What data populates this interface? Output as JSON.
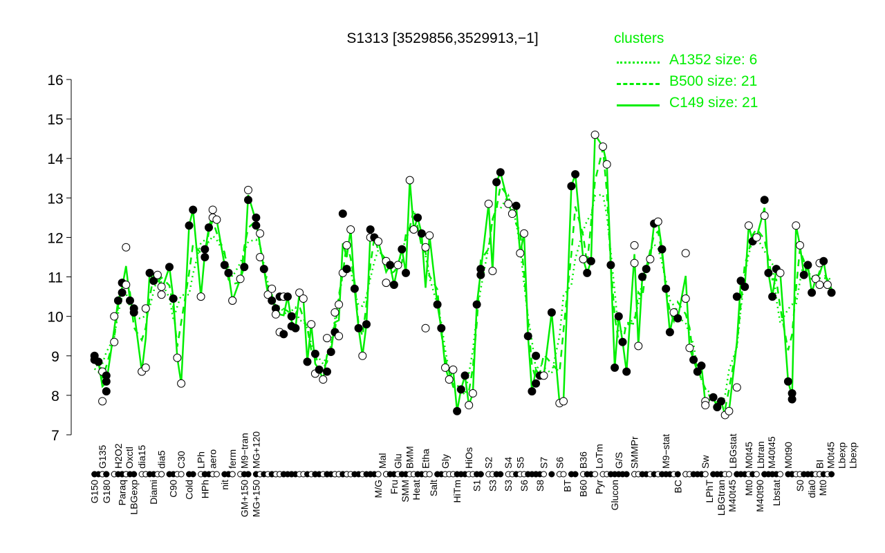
{
  "chart_data": {
    "type": "line",
    "title": "S1313 [3529856,3529913,−1]",
    "xlabel": "",
    "ylabel": "",
    "ylim": [
      7,
      16
    ],
    "xlim": [
      1,
      190
    ],
    "yticks": [
      "7",
      "8",
      "9",
      "10",
      "11",
      "12",
      "13",
      "14",
      "15",
      "16"
    ],
    "grid": false,
    "legend": {
      "title": "clusters",
      "placement": "top-right",
      "color": "#00ee00",
      "entries": [
        {
          "label": "A1352 size: 6",
          "style": "dotted"
        },
        {
          "label": "B500 size: 21",
          "style": "dashed"
        },
        {
          "label": "C149 size: 21",
          "style": "solid"
        }
      ]
    },
    "line_color": "#00ee00",
    "points": [
      [
        2,
        9.0,
        1
      ],
      [
        2,
        8.9,
        1
      ],
      [
        3,
        8.85,
        1
      ],
      [
        4,
        8.6,
        0
      ],
      [
        4,
        7.85,
        0
      ],
      [
        5,
        8.1,
        1
      ],
      [
        5,
        8.5,
        1
      ],
      [
        5,
        8.35,
        1
      ],
      [
        7,
        9.35,
        0
      ],
      [
        7,
        10.0,
        0
      ],
      [
        8,
        10.4,
        1
      ],
      [
        9,
        10.85,
        1
      ],
      [
        9,
        10.6,
        1
      ],
      [
        10,
        10.8,
        0
      ],
      [
        10,
        11.75,
        0
      ],
      [
        11,
        10.4,
        1
      ],
      [
        12,
        10.2,
        1
      ],
      [
        12,
        10.1,
        1
      ],
      [
        14,
        8.6,
        0
      ],
      [
        15,
        10.2,
        0
      ],
      [
        15,
        8.7,
        0
      ],
      [
        16,
        11.1,
        1
      ],
      [
        17,
        10.9,
        1
      ],
      [
        18,
        11.05,
        0
      ],
      [
        19,
        10.55,
        0
      ],
      [
        19,
        10.75,
        0
      ],
      [
        21,
        11.25,
        1
      ],
      [
        22,
        10.45,
        1
      ],
      [
        23,
        8.95,
        0
      ],
      [
        24,
        8.3,
        0
      ],
      [
        26,
        12.3,
        1
      ],
      [
        27,
        12.7,
        1
      ],
      [
        29,
        10.5,
        0
      ],
      [
        30,
        11.5,
        1
      ],
      [
        30,
        11.7,
        1
      ],
      [
        31,
        12.25,
        1
      ],
      [
        32,
        12.5,
        0
      ],
      [
        32,
        12.7,
        0
      ],
      [
        33,
        12.45,
        0
      ],
      [
        35,
        11.3,
        1
      ],
      [
        36,
        11.1,
        1
      ],
      [
        36,
        11.1,
        1
      ],
      [
        37,
        10.4,
        0
      ],
      [
        37,
        10.4,
        0
      ],
      [
        39,
        10.95,
        0
      ],
      [
        40,
        11.25,
        1
      ],
      [
        41,
        13.2,
        0
      ],
      [
        41,
        12.95,
        1
      ],
      [
        43,
        12.5,
        1
      ],
      [
        43,
        12.3,
        1
      ],
      [
        44,
        12.1,
        0
      ],
      [
        44,
        11.5,
        0
      ],
      [
        45,
        11.2,
        1
      ],
      [
        46,
        10.55,
        0
      ],
      [
        47,
        10.7,
        0
      ],
      [
        47,
        10.4,
        1
      ],
      [
        48,
        10.2,
        1
      ],
      [
        48,
        10.05,
        0
      ],
      [
        49,
        10.5,
        1
      ],
      [
        49,
        9.6,
        0
      ],
      [
        50,
        10.5,
        0
      ],
      [
        50,
        9.55,
        1
      ],
      [
        51,
        10.5,
        1
      ],
      [
        52,
        10.0,
        1
      ],
      [
        52,
        9.75,
        1
      ],
      [
        53,
        9.7,
        1
      ],
      [
        54,
        10.6,
        0
      ],
      [
        55,
        10.45,
        0
      ],
      [
        56,
        8.85,
        1
      ],
      [
        57,
        9.8,
        0
      ],
      [
        58,
        8.55,
        0
      ],
      [
        58,
        9.05,
        1
      ],
      [
        59,
        8.65,
        1
      ],
      [
        60,
        8.4,
        0
      ],
      [
        61,
        9.45,
        0
      ],
      [
        61,
        8.6,
        1
      ],
      [
        62,
        9.1,
        1
      ],
      [
        63,
        9.6,
        1
      ],
      [
        63,
        10.1,
        0
      ],
      [
        64,
        9.5,
        0
      ],
      [
        64,
        10.3,
        0
      ],
      [
        65,
        11.1,
        0
      ],
      [
        65,
        12.6,
        1
      ],
      [
        66,
        11.2,
        1
      ],
      [
        66,
        11.8,
        0
      ],
      [
        67,
        12.2,
        0
      ],
      [
        68,
        10.7,
        1
      ],
      [
        69,
        9.7,
        1
      ],
      [
        70,
        9.0,
        0
      ],
      [
        71,
        9.8,
        1
      ],
      [
        72,
        12.0,
        0
      ],
      [
        72,
        12.2,
        1
      ],
      [
        73,
        12.0,
        1
      ],
      [
        74,
        11.9,
        0
      ],
      [
        76,
        10.85,
        0
      ],
      [
        76,
        11.4,
        0
      ],
      [
        77,
        11.3,
        1
      ],
      [
        78,
        10.8,
        1
      ],
      [
        79,
        11.3,
        0
      ],
      [
        80,
        11.7,
        1
      ],
      [
        81,
        11.1,
        1
      ],
      [
        82,
        13.45,
        0
      ],
      [
        83,
        12.2,
        0
      ],
      [
        84,
        12.5,
        1
      ],
      [
        85,
        12.1,
        1
      ],
      [
        86,
        9.7,
        0
      ],
      [
        86,
        11.75,
        0
      ],
      [
        87,
        12.05,
        0
      ],
      [
        89,
        10.3,
        1
      ],
      [
        90,
        9.7,
        1
      ],
      [
        91,
        8.7,
        0
      ],
      [
        92,
        8.4,
        0
      ],
      [
        93,
        8.65,
        0
      ],
      [
        94,
        7.6,
        1
      ],
      [
        95,
        8.15,
        1
      ],
      [
        96,
        8.5,
        1
      ],
      [
        97,
        7.75,
        0
      ],
      [
        98,
        8.05,
        0
      ],
      [
        99,
        10.3,
        1
      ],
      [
        100,
        11.2,
        1
      ],
      [
        100,
        11.05,
        1
      ],
      [
        102,
        12.85,
        0
      ],
      [
        103,
        11.15,
        0
      ],
      [
        104,
        13.4,
        1
      ],
      [
        105,
        13.65,
        1
      ],
      [
        107,
        12.85,
        0
      ],
      [
        108,
        12.6,
        0
      ],
      [
        109,
        12.8,
        1
      ],
      [
        110,
        11.6,
        0
      ],
      [
        111,
        12.1,
        0
      ],
      [
        112,
        9.5,
        1
      ],
      [
        113,
        8.1,
        1
      ],
      [
        114,
        8.3,
        1
      ],
      [
        114,
        9.0,
        1
      ],
      [
        115,
        8.5,
        1
      ],
      [
        116,
        8.5,
        0
      ],
      [
        118,
        10.1,
        1
      ],
      [
        120,
        7.8,
        0
      ],
      [
        121,
        7.85,
        0
      ],
      [
        123,
        13.3,
        1
      ],
      [
        124,
        13.6,
        1
      ],
      [
        126,
        11.45,
        0
      ],
      [
        127,
        11.1,
        1
      ],
      [
        128,
        11.4,
        1
      ],
      [
        129,
        14.6,
        0
      ],
      [
        131,
        14.3,
        0
      ],
      [
        132,
        13.85,
        0
      ],
      [
        133,
        11.3,
        1
      ],
      [
        134,
        8.7,
        1
      ],
      [
        135,
        10.0,
        1
      ],
      [
        136,
        9.35,
        1
      ],
      [
        137,
        8.6,
        1
      ],
      [
        139,
        11.35,
        0
      ],
      [
        139,
        11.8,
        0
      ],
      [
        140,
        9.25,
        0
      ],
      [
        141,
        11.0,
        1
      ],
      [
        142,
        11.2,
        1
      ],
      [
        143,
        11.45,
        0
      ],
      [
        144,
        12.35,
        1
      ],
      [
        145,
        12.4,
        0
      ],
      [
        146,
        11.7,
        1
      ],
      [
        147,
        10.7,
        1
      ],
      [
        148,
        9.6,
        1
      ],
      [
        149,
        10.1,
        0
      ],
      [
        150,
        9.95,
        1
      ],
      [
        152,
        11.6,
        0
      ],
      [
        152,
        10.45,
        0
      ],
      [
        153,
        9.2,
        0
      ],
      [
        154,
        8.9,
        1
      ],
      [
        155,
        8.6,
        1
      ],
      [
        156,
        8.75,
        1
      ],
      [
        157,
        7.85,
        0
      ],
      [
        157,
        7.75,
        0
      ],
      [
        159,
        7.95,
        1
      ],
      [
        160,
        7.7,
        1
      ],
      [
        161,
        7.85,
        1
      ],
      [
        162,
        7.5,
        0
      ],
      [
        163,
        7.6,
        0
      ],
      [
        165,
        8.2,
        0
      ],
      [
        165,
        10.5,
        1
      ],
      [
        166,
        10.9,
        1
      ],
      [
        167,
        10.75,
        1
      ],
      [
        168,
        12.3,
        0
      ],
      [
        169,
        11.9,
        1
      ],
      [
        170,
        12.0,
        0
      ],
      [
        172,
        12.55,
        0
      ],
      [
        172,
        12.95,
        1
      ],
      [
        173,
        11.1,
        1
      ],
      [
        174,
        10.5,
        1
      ],
      [
        175,
        11.2,
        1
      ],
      [
        176,
        11.1,
        0
      ],
      [
        178,
        8.35,
        1
      ],
      [
        179,
        8.05,
        1
      ],
      [
        179,
        7.9,
        1
      ],
      [
        180,
        12.3,
        0
      ],
      [
        181,
        11.8,
        0
      ],
      [
        182,
        11.05,
        1
      ],
      [
        183,
        11.3,
        1
      ],
      [
        184,
        10.6,
        1
      ],
      [
        185,
        10.95,
        0
      ],
      [
        186,
        10.8,
        0
      ],
      [
        186,
        11.35,
        0
      ],
      [
        187,
        11.4,
        1
      ],
      [
        188,
        10.8,
        0
      ],
      [
        189,
        10.6,
        1
      ]
    ],
    "xlabels_top": [
      [
        "G135",
        4
      ],
      [
        "H2O2",
        8
      ],
      [
        "Oxctl",
        10
      ],
      [
        "dia15",
        14
      ],
      [
        "dia5",
        19
      ],
      [
        "C30",
        24
      ],
      [
        "LPh",
        29
      ],
      [
        "aero",
        32
      ],
      [
        "ferm",
        37
      ],
      [
        "M9−tran",
        40
      ],
      [
        "MG+120",
        43
      ],
      [
        "Mal",
        75
      ],
      [
        "Glu",
        79
      ],
      [
        "BMM",
        82
      ],
      [
        "Etha",
        86
      ],
      [
        "Gly",
        91
      ],
      [
        "HiOs",
        97
      ],
      [
        "S2",
        102
      ],
      [
        "S4",
        107
      ],
      [
        "S5",
        110
      ],
      [
        "S7",
        116
      ],
      [
        "S6",
        120
      ],
      [
        "B36",
        126
      ],
      [
        "LoTm",
        130
      ],
      [
        "G/S",
        135
      ],
      [
        "SMMPr",
        139
      ],
      [
        "M9−stat",
        147
      ],
      [
        "Sw",
        157
      ],
      [
        "LBGstat",
        164
      ],
      [
        "M0t45",
        168
      ],
      [
        "Lbtran",
        171
      ],
      [
        "M40t45",
        172
      ],
      [
        "M0t90",
        178
      ],
      [
        "BI",
        186
      ],
      [
        "M0t45",
        188
      ],
      [
        "Lbexp",
        189
      ],
      [
        "Lbexp",
        190
      ]
    ],
    "xlabels_bottom": [
      [
        "G150",
        2
      ],
      [
        "G180",
        5
      ],
      [
        "Paraq",
        9
      ],
      [
        "LBGexp",
        12
      ],
      [
        "Diami",
        17
      ],
      [
        "C90",
        22
      ],
      [
        "Cold",
        26
      ],
      [
        "HPh",
        30
      ],
      [
        "nit",
        35
      ],
      [
        "GM+150",
        40
      ],
      [
        "MG+150",
        43
      ],
      [
        "M/G",
        74
      ],
      [
        "Fru",
        78
      ],
      [
        "SMM",
        80
      ],
      [
        "Heat",
        83
      ],
      [
        "Salt",
        88
      ],
      [
        "HiTm",
        94
      ],
      [
        "S1",
        99
      ],
      [
        "S3",
        103
      ],
      [
        "S3",
        107
      ],
      [
        "S6",
        111
      ],
      [
        "S8",
        115
      ],
      [
        "BT",
        122
      ],
      [
        "B60",
        126
      ],
      [
        "Pyr",
        130
      ],
      [
        "Glucon",
        134
      ],
      [
        "BC",
        150
      ],
      [
        "LPhT",
        158
      ],
      [
        "LBGtran",
        161
      ],
      [
        "M40t45",
        163
      ],
      [
        "Mt0",
        168
      ],
      [
        "M40t90",
        170
      ],
      [
        "Lbstat",
        175
      ],
      [
        "S0",
        181
      ],
      [
        "dia0",
        184
      ],
      [
        "Mt0",
        185
      ]
    ]
  }
}
